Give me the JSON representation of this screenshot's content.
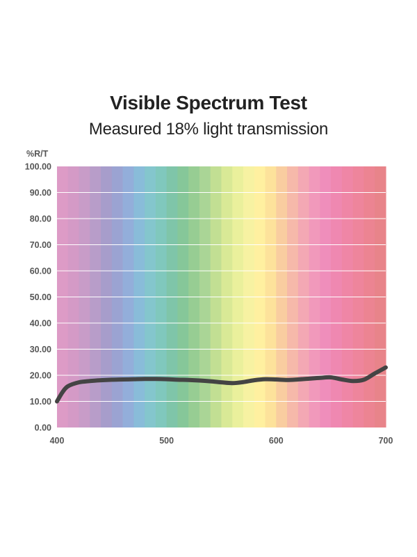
{
  "chart_data": {
    "type": "line",
    "title": "Visible Spectrum Test",
    "subtitle": "Measured 18% light transmission",
    "ylabel": "%R/T",
    "xlabel": "",
    "xlim": [
      400,
      700
    ],
    "ylim": [
      0,
      100
    ],
    "x_ticks": [
      400,
      500,
      600,
      700
    ],
    "y_ticks": [
      0,
      10,
      20,
      30,
      40,
      50,
      60,
      70,
      80,
      90,
      100
    ],
    "x_tick_labels": [
      "400",
      "500",
      "600",
      "700"
    ],
    "y_tick_labels": [
      "0.00",
      "10.00",
      "20.00",
      "30.00",
      "40.00",
      "50.00",
      "60.00",
      "70.00",
      "80.00",
      "90.00",
      "100.00"
    ],
    "grid": true,
    "line_color": "#444444",
    "spectrum_colors": [
      "#dd9bc6",
      "#d49ac6",
      "#c89cc8",
      "#b89dc9",
      "#a79dcb",
      "#9ba3d2",
      "#93aeda",
      "#89bcd9",
      "#84c6cd",
      "#80c8bd",
      "#7fc5a9",
      "#86c799",
      "#97cd93",
      "#aad596",
      "#c2df93",
      "#d9e996",
      "#eaf09c",
      "#f7f2a2",
      "#fff0a0",
      "#fde29b",
      "#f9cda0",
      "#f6b9aa",
      "#f3a8b4",
      "#f199bb",
      "#ef8ebb",
      "#ef88b1",
      "#ef86a6",
      "#ee859c",
      "#ec8492",
      "#e8848a"
    ],
    "series": [
      {
        "x": [
          400,
          405,
          410,
          420,
          430,
          440,
          450,
          460,
          470,
          480,
          490,
          500,
          510,
          520,
          530,
          540,
          550,
          560,
          570,
          580,
          590,
          600,
          610,
          620,
          630,
          640,
          650,
          660,
          670,
          680,
          690,
          700
        ],
        "y": [
          10.0,
          13.5,
          15.8,
          17.3,
          17.8,
          18.1,
          18.3,
          18.4,
          18.5,
          18.6,
          18.6,
          18.5,
          18.3,
          18.2,
          18.0,
          17.7,
          17.3,
          17.0,
          17.4,
          18.1,
          18.5,
          18.4,
          18.2,
          18.4,
          18.7,
          19.0,
          19.2,
          18.4,
          17.8,
          18.3,
          20.7,
          23.0
        ]
      }
    ]
  }
}
